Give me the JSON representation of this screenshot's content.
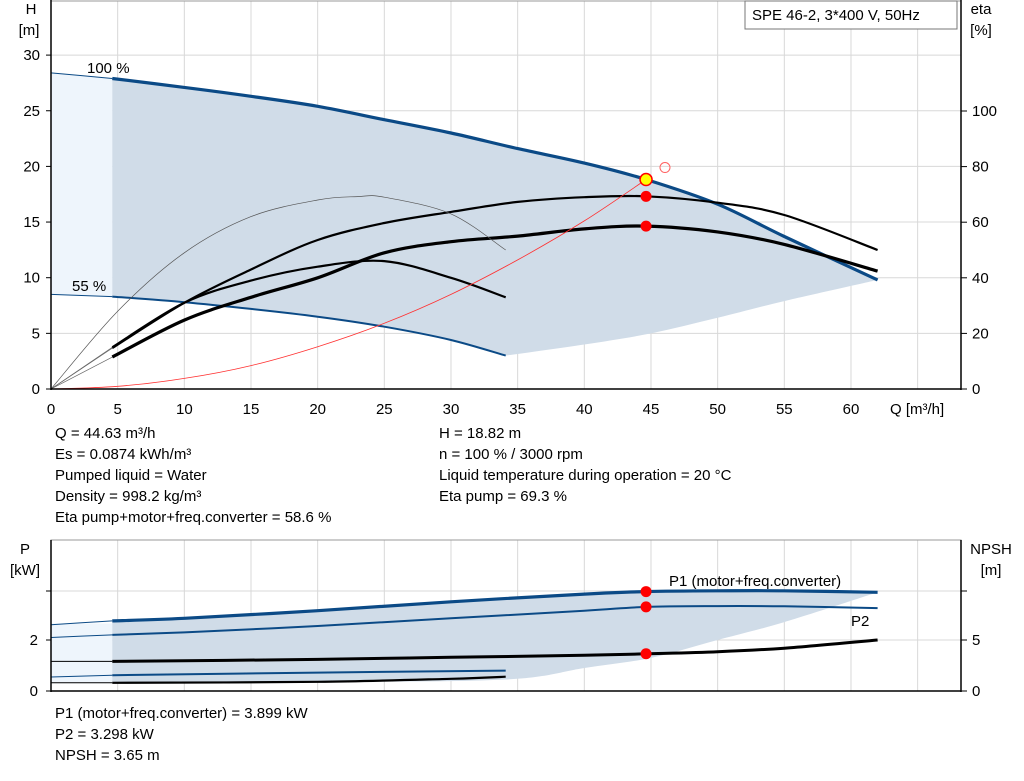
{
  "chart_data": [
    {
      "type": "line",
      "legend_box": "SPE 46-2, 3*400 V, 50Hz",
      "ylabel_left": [
        "H",
        "[m]"
      ],
      "ylabel_right": [
        "eta",
        "[%]"
      ],
      "xlabel": "Q [m³/h]",
      "xlim": [
        0,
        68
      ],
      "xticks": [
        "0",
        "5",
        "10",
        "15",
        "20",
        "25",
        "30",
        "35",
        "40",
        "45",
        "50",
        "55",
        "60"
      ],
      "ylim_left": [
        0,
        35
      ],
      "yticks_left": [
        "0",
        "5",
        "10",
        "15",
        "20",
        "25",
        "30"
      ],
      "ylim_right": [
        0,
        140
      ],
      "yticks_right": [
        "0",
        "20",
        "40",
        "60",
        "80",
        "100"
      ],
      "grid": true,
      "curve_labels": [
        "100 %",
        "55 %"
      ],
      "series": [
        {
          "name": "100 %",
          "axis": "H",
          "color": "#0b4a86",
          "x": [
            0,
            4.6,
            10,
            15,
            20,
            25,
            30,
            35,
            40,
            44.63,
            50,
            55,
            62
          ],
          "y": [
            28.4,
            27.9,
            27.1,
            26.3,
            25.4,
            24.2,
            23,
            21.6,
            20.3,
            18.82,
            16.6,
            13.7,
            9.8
          ]
        },
        {
          "name": "55 %",
          "axis": "H",
          "color": "#0b4a86",
          "x": [
            0,
            4.6,
            10,
            15,
            20,
            25,
            30,
            34.1
          ],
          "y": [
            8.5,
            8.3,
            7.8,
            7.2,
            6.5,
            5.6,
            4.4,
            3.0
          ]
        },
        {
          "axis": "eta",
          "color": "#000000",
          "x": [
            4.6,
            10,
            15,
            20,
            25,
            30,
            35,
            40,
            44.63,
            50,
            55,
            62
          ],
          "y": [
            14.7,
            31,
            43,
            53.6,
            59.7,
            63.7,
            67.3,
            69,
            69.3,
            67,
            62.6,
            50
          ]
        },
        {
          "axis": "eta",
          "color": "#000000",
          "x": [
            4.6,
            10,
            15,
            20,
            25,
            30,
            35,
            40,
            44.63,
            50,
            55,
            62
          ],
          "y": [
            11.5,
            24.8,
            33,
            40,
            49,
            53,
            55,
            57.6,
            58.6,
            56.5,
            52,
            42.4
          ]
        },
        {
          "axis": "eta",
          "color": "#000000",
          "x": [
            4.6,
            10,
            15,
            20,
            25,
            30,
            34.1
          ],
          "y": [
            15,
            31,
            39,
            44,
            46,
            40,
            33
          ]
        },
        {
          "axis": "eta",
          "color": "#555555",
          "x": [
            0,
            5,
            10,
            15,
            20,
            23,
            25,
            30,
            34.1
          ],
          "y": [
            0,
            28,
            49,
            62,
            68,
            69.2,
            69,
            63,
            50
          ]
        },
        {
          "axis": "H",
          "color": "#ff3030",
          "x": [
            0,
            5,
            10,
            15,
            20,
            25,
            30,
            35,
            40,
            44.63
          ],
          "y": [
            0,
            0.24,
            0.95,
            2.1,
            3.8,
            5.9,
            8.5,
            11.6,
            15.1,
            18.82
          ]
        }
      ],
      "operating_point": {
        "Q": 44.63,
        "H": 18.82,
        "eta_pump": 69.3,
        "eta_total": 58.6
      },
      "requested_point": {
        "Q": 46.05,
        "H": 19.9
      },
      "colors": {
        "area": "#d0dce8",
        "area_light": "#eef5fc",
        "duty_fill": "#ffff00",
        "marker": "#ff0000"
      }
    },
    {
      "type": "line",
      "ylabel_left": [
        "P",
        "[kW]"
      ],
      "ylabel_right": [
        "NPSH",
        "[m]"
      ],
      "xlim": [
        0,
        68
      ],
      "ylim_left": [
        0,
        5.9
      ],
      "yticks_left": [
        "0",
        "2"
      ],
      "ylim_right": [
        0,
        14.8
      ],
      "yticks_right": [
        "0",
        "5"
      ],
      "grid": true,
      "curve_labels": [
        "P1 (motor+freq.converter)",
        "P2"
      ],
      "series": [
        {
          "name": "P1 (motor+freq.converter)",
          "axis": "P",
          "color": "#0b4a86",
          "x": [
            0,
            4.6,
            10,
            20,
            30,
            40,
            44.63,
            50,
            55,
            62
          ],
          "y": [
            2.6,
            2.75,
            2.85,
            3.15,
            3.5,
            3.8,
            3.899,
            3.93,
            3.93,
            3.87
          ]
        },
        {
          "name": "P2",
          "axis": "P",
          "color": "#0b4a86",
          "x": [
            0,
            4.6,
            10,
            20,
            30,
            40,
            44.63,
            50,
            55,
            62
          ],
          "y": [
            2.1,
            2.2,
            2.3,
            2.55,
            2.85,
            3.15,
            3.298,
            3.33,
            3.32,
            3.25
          ]
        },
        {
          "axis": "NPSH",
          "color": "#000000",
          "x": [
            0,
            4.6,
            20,
            30,
            40,
            44.63,
            50,
            55,
            62
          ],
          "y": [
            2.9,
            2.9,
            3.1,
            3.3,
            3.5,
            3.65,
            3.85,
            4.2,
            5.0
          ]
        },
        {
          "axis": "P",
          "color": "#0b4a86",
          "x": [
            0,
            4.6,
            20,
            34.1
          ],
          "y": [
            0.55,
            0.62,
            0.72,
            0.8
          ]
        },
        {
          "axis": "NPSH",
          "color": "#000000",
          "x": [
            0,
            4.6,
            20,
            30,
            34.1
          ],
          "y": [
            0.8,
            0.8,
            0.9,
            1.2,
            1.4
          ]
        }
      ],
      "operating_point": {
        "Q": 44.63,
        "P1": 3.899,
        "P2": 3.298,
        "NPSH": 3.65
      }
    }
  ],
  "results": {
    "left": [
      "Q = 44.63 m³/h",
      "Es = 0.0874 kWh/m³",
      "Pumped liquid = Water",
      "Density = 998.2 kg/m³",
      "Eta pump+motor+freq.converter = 58.6 %"
    ],
    "right": [
      "H = 18.82 m",
      "n = 100 % / 3000 rpm",
      "Liquid temperature during operation = 20 °C",
      "Eta pump = 69.3 %"
    ],
    "power": [
      "P1 (motor+freq.converter) = 3.899 kW",
      "P2 = 3.298 kW",
      "NPSH = 3.65 m"
    ]
  }
}
